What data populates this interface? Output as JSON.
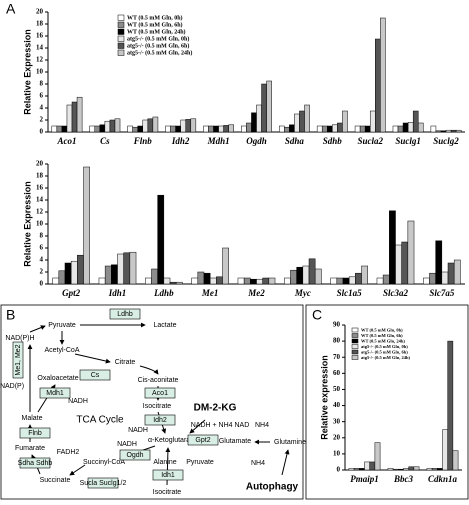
{
  "panels": [
    "A",
    "B",
    "C"
  ],
  "chart_data": [
    {
      "type": "bar",
      "ylabel": "Relative Expression",
      "ylim": [
        0,
        20
      ],
      "yticks": [
        0,
        2,
        4,
        6,
        8,
        10,
        12,
        14,
        16,
        18,
        20
      ],
      "legend": "top-left",
      "categories": [
        "Aco1",
        "Cs",
        "Flnb",
        "Idh2",
        "Mdh1",
        "Ogdh",
        "Sdha",
        "Sdhb",
        "Sucla2",
        "Suclg1",
        "Suclg2"
      ],
      "series": [
        {
          "name": "WT (0.5 mM Gln, 0h)",
          "color": "#ffffff",
          "values": [
            1,
            1,
            1,
            1,
            1,
            1,
            1,
            1,
            1,
            1,
            1
          ]
        },
        {
          "name": "WT (0.5 mM Gln, 6h)",
          "color": "#8c8c8c",
          "values": [
            1,
            1,
            0.8,
            1,
            1,
            1.5,
            0.8,
            1,
            1,
            1,
            0.2
          ]
        },
        {
          "name": "WT (0.5 mM Gln, 24h)",
          "color": "#000000",
          "values": [
            1,
            1.2,
            1,
            1,
            1,
            3.2,
            1.2,
            1,
            1,
            1.5,
            0.2
          ]
        },
        {
          "name": "atg5-/- (0.5 mM Gln, 0h)",
          "color": "#e6e6e6",
          "values": [
            4.5,
            1.8,
            2,
            2,
            1,
            4.5,
            3,
            1.2,
            3.5,
            1.6,
            0.3
          ]
        },
        {
          "name": "atg5-/- (0.5 mM Gln, 6h)",
          "color": "#555555",
          "values": [
            5,
            2,
            2.2,
            2.1,
            1.1,
            8,
            3.5,
            1.5,
            15.5,
            3.5,
            0.3
          ]
        },
        {
          "name": "atg5-/- (0.5 mM Gln, 24h)",
          "color": "#c8c8c8",
          "values": [
            5.8,
            2.2,
            2.5,
            2.2,
            1.2,
            8.5,
            4.5,
            3.5,
            19,
            1.5,
            0.3
          ]
        }
      ]
    },
    {
      "type": "bar",
      "ylabel": "Relative Expression",
      "ylim": [
        0,
        20
      ],
      "yticks": [
        0,
        2,
        4,
        6,
        8,
        10,
        12,
        14,
        16,
        18,
        20
      ],
      "categories": [
        "Gpt2",
        "Idh1",
        "Ldhb",
        "Me1",
        "Me2",
        "Myc",
        "Slc1a5",
        "Slc3a2",
        "Slc7a5"
      ],
      "series": [
        {
          "name": "WT (0.5 mM Gln, 0h)",
          "color": "#ffffff",
          "values": [
            1,
            1,
            1,
            1,
            1,
            1,
            1,
            1,
            1
          ]
        },
        {
          "name": "WT (0.5 mM Gln, 6h)",
          "color": "#8c8c8c",
          "values": [
            2.2,
            3,
            2.5,
            2,
            1,
            2.3,
            1,
            1.5,
            1.8
          ]
        },
        {
          "name": "WT (0.5 mM Gln, 24h)",
          "color": "#000000",
          "values": [
            3.5,
            3.2,
            14.8,
            1.8,
            0.8,
            2.8,
            1,
            12.2,
            7.2
          ]
        },
        {
          "name": "atg5-/- (0.5 mM Gln, 0h)",
          "color": "#e6e6e6",
          "values": [
            3.8,
            5,
            1,
            1,
            0.8,
            3,
            1.2,
            6.5,
            2
          ]
        },
        {
          "name": "atg5-/- (0.5 mM Gln, 6h)",
          "color": "#555555",
          "values": [
            4.8,
            5.2,
            0.3,
            1.2,
            1,
            4.2,
            1.8,
            7,
            3.5
          ]
        },
        {
          "name": "atg5-/- (0.5 mM Gln, 24h)",
          "color": "#c8c8c8",
          "values": [
            19.5,
            5.3,
            0.3,
            6,
            1,
            2.5,
            3,
            10.5,
            4
          ]
        }
      ]
    },
    {
      "type": "bar",
      "ylabel": "Relative expression",
      "ylim": [
        0,
        90
      ],
      "yticks": [
        0,
        10,
        20,
        30,
        40,
        50,
        60,
        70,
        80,
        90
      ],
      "legend": "top-left",
      "categories": [
        "Pmaip1",
        "Bbc3",
        "Cdkn1a"
      ],
      "series": [
        {
          "name": "WT (0.5 mM Gln, 0h)",
          "color": "#ffffff",
          "values": [
            1,
            1,
            1
          ]
        },
        {
          "name": "WT (0.5 mM Gln, 6h)",
          "color": "#8c8c8c",
          "values": [
            1,
            0.5,
            1
          ]
        },
        {
          "name": "WT (0.5 mM Gln, 24h)",
          "color": "#000000",
          "values": [
            1,
            0.5,
            1
          ]
        },
        {
          "name": "atg5-/- (0.5 mM Gln, 0h)",
          "color": "#e6e6e6",
          "values": [
            5,
            1,
            25
          ]
        },
        {
          "name": "atg5-/- (0.5 mM Gln, 6h)",
          "color": "#555555",
          "values": [
            5,
            2,
            80
          ]
        },
        {
          "name": "atg5-/- (0.5 mM Gln, 24h)",
          "color": "#c8c8c8",
          "values": [
            17,
            2,
            12
          ]
        }
      ]
    }
  ],
  "diagram": {
    "nodes": [
      "Pyruvate",
      "Lactate",
      "Ldhb",
      "Acetyl-CoA",
      "Citrate",
      "Cs",
      "Oxaloacetate",
      "Mdh1",
      "NADH",
      "Me1, Me2",
      "NAD(P)H",
      "NAD(P)",
      "Malate",
      "Flnb",
      "Fumarate",
      "FADH2",
      "Sdha Sdhb",
      "Succinate",
      "Sucla Suclg1/2",
      "Succinyl-CoA",
      "Ogdh",
      "NADH",
      "Cis-aconitate",
      "Aco1",
      "Isocitrate",
      "Idh2",
      "NADH",
      "TCA Cycle",
      "DM-2-KG",
      "NADH + NH4 NAD",
      "α-Ketoglutarate",
      "Gpt2",
      "Glutamate",
      "Alanine",
      "Pyruvate",
      "Idh1",
      "Isocitrate",
      "NH4",
      "Glutamine",
      "NH4",
      "Autophagy"
    ]
  }
}
